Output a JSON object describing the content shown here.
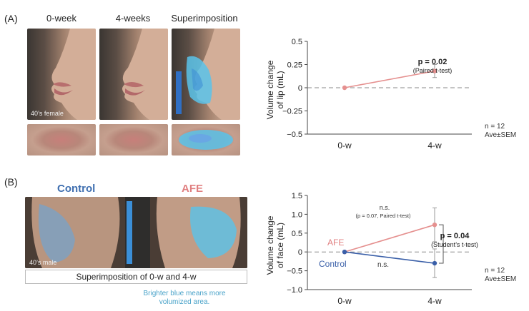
{
  "panels": {
    "a": {
      "label": "(A)",
      "columns": [
        "0-week",
        "4-weeks",
        "Superimposition"
      ],
      "subject_tag": "40’s female"
    },
    "b": {
      "label": "(B)",
      "control_title": "Control",
      "afe_title": "AFE",
      "subject_tag": "40’s male",
      "caption": "Superimposition of 0-w and 4-w",
      "brighter_line1": "Brighter blue means more",
      "brighter_line2": "volumized area."
    }
  },
  "chart_data": [
    {
      "type": "line",
      "ylabel_line1": "Volume change",
      "ylabel_line2": "of lip (mL)",
      "categories": [
        "0-w",
        "4-w"
      ],
      "yticks": [
        "0.5",
        "0.25",
        "0",
        "−0.25",
        "−0.5"
      ],
      "ylim": [
        -0.5,
        0.5
      ],
      "series": [
        {
          "name": "",
          "values": [
            0,
            0.18
          ],
          "errors": [
            0,
            0.07
          ],
          "color": "#e5908f"
        }
      ],
      "annotation_p": "p = 0.02",
      "annotation_test": "(Paired t-test)",
      "n_label": "n = 12",
      "stat_label": "Ave±SEM",
      "zero_line": "dashed",
      "grid": false
    },
    {
      "type": "line",
      "ylabel_line1": "Volume change",
      "ylabel_line2": "of face (mL)",
      "categories": [
        "0-w",
        "4-w"
      ],
      "yticks": [
        "1.5",
        "1.0",
        "0.5",
        "0",
        "−0.5",
        "−1.0"
      ],
      "ylim": [
        -1.0,
        1.5
      ],
      "series": [
        {
          "name": "AFE",
          "values": [
            0,
            0.72
          ],
          "errors": [
            0,
            0.45
          ],
          "color": "#e5908f"
        },
        {
          "name": "Control",
          "values": [
            0,
            -0.3
          ],
          "errors": [
            0,
            0.38
          ],
          "color": "#3a5fa8"
        }
      ],
      "afe_ns": "n.s.",
      "afe_ns_detail": "(p = 0.07, Paired t-test)",
      "control_ns": "n.s.",
      "bracket_p": "p = 0.04",
      "bracket_test": "(Student’s t-test)",
      "n_label": "n = 12",
      "stat_label": "Ave±SEM",
      "zero_line": "dashed",
      "grid": false
    }
  ],
  "colors": {
    "afe": "#e5908f",
    "control": "#3a5fa8",
    "axis": "#444444",
    "heatmap": "#59c3ea"
  }
}
